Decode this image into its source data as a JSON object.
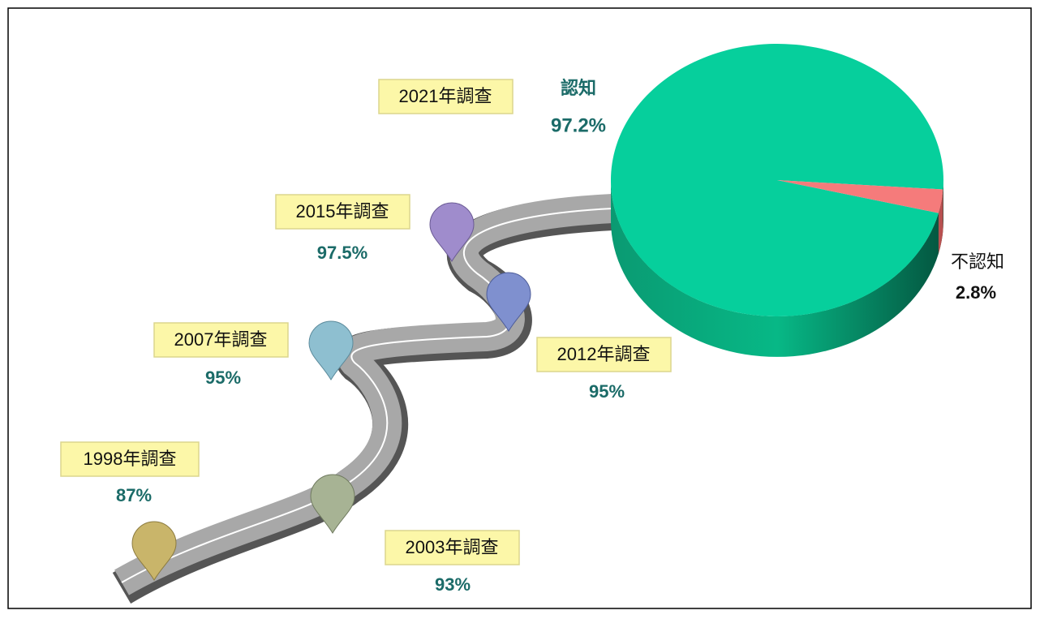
{
  "chart_data": {
    "type": "pie",
    "categories": [
      "認知",
      "不認知"
    ],
    "values": [
      97.2,
      2.8
    ],
    "value_labels": [
      "97.2%",
      "2.8%"
    ],
    "colors": [
      "#06cf9c",
      "#f57b7b"
    ]
  },
  "milestones": [
    {
      "label": "1998年調查",
      "value": "87%"
    },
    {
      "label": "2003年調查",
      "value": "93%"
    },
    {
      "label": "2007年調查",
      "value": "95%"
    },
    {
      "label": "2012年調查",
      "value": "95%"
    },
    {
      "label": "2015年調查",
      "value": "97.5%"
    },
    {
      "label": "2021年調查"
    }
  ]
}
